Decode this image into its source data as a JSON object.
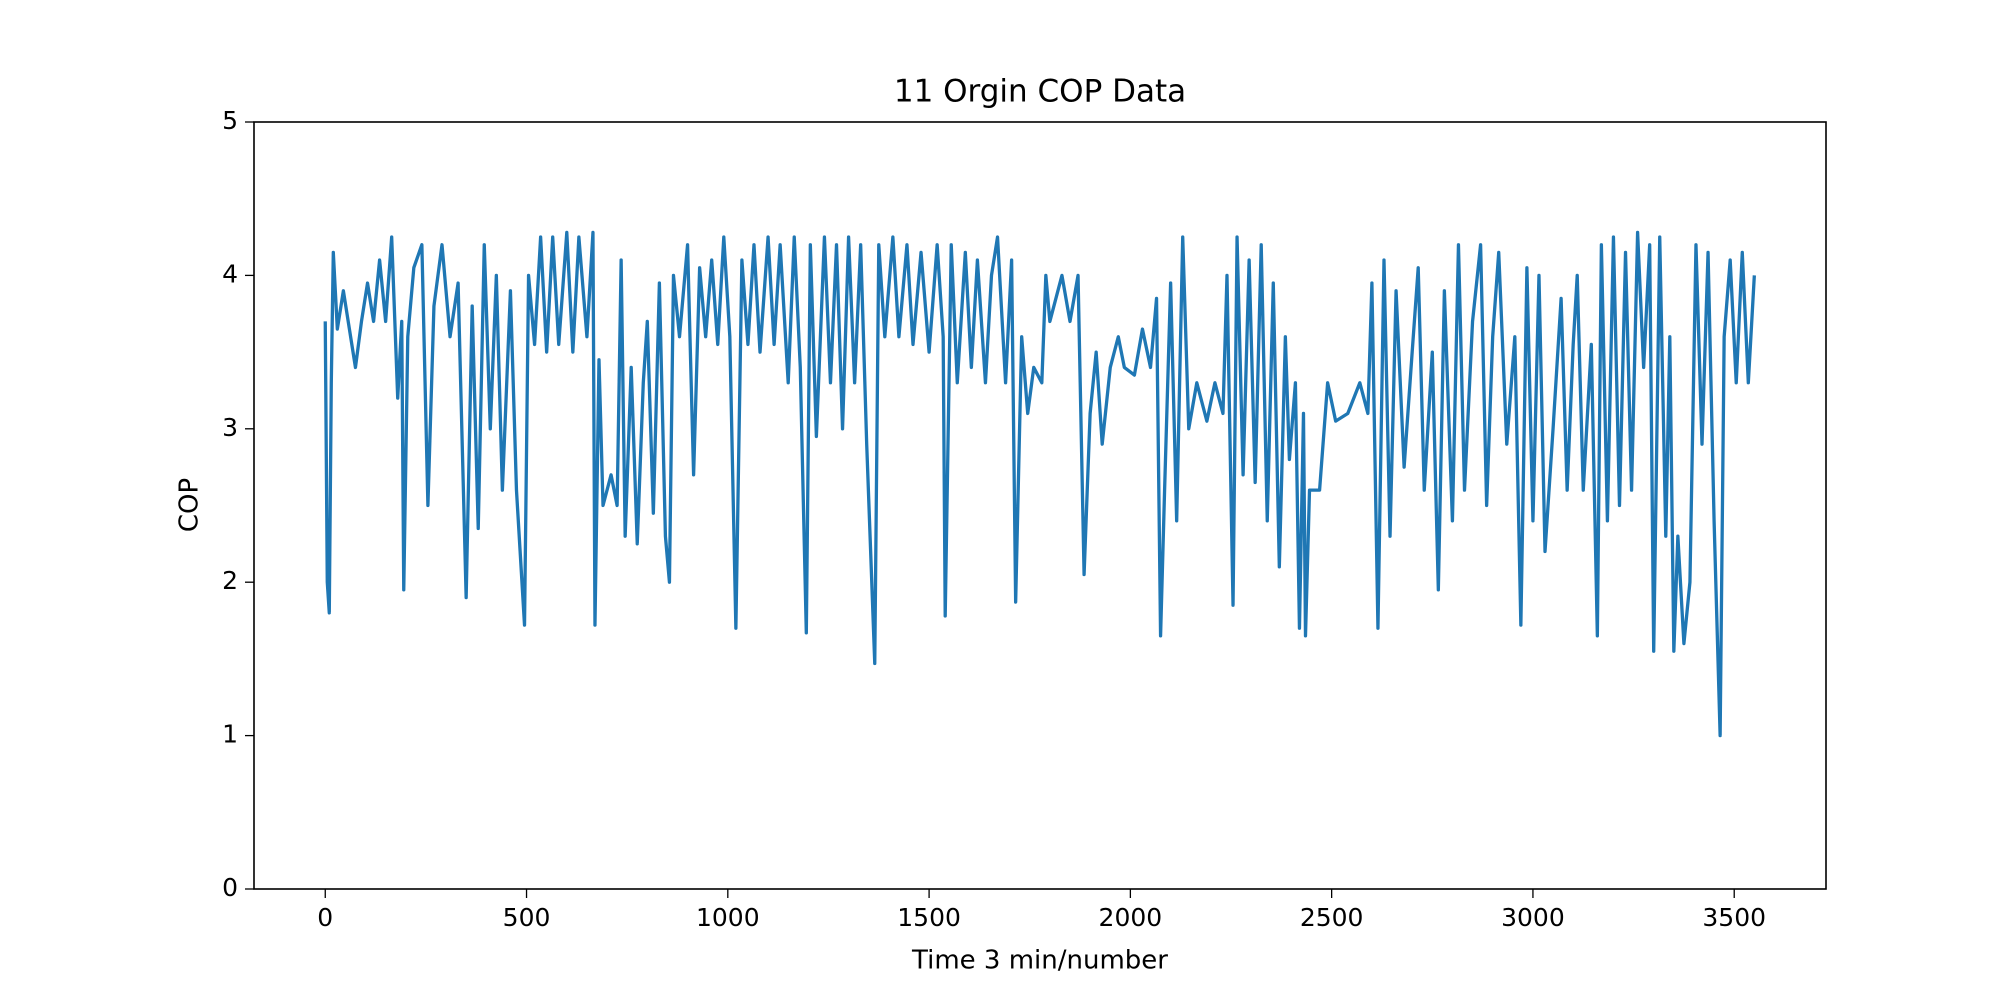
{
  "chart_data": {
    "type": "line",
    "title": "11 Orgin COP Data",
    "x_label": "Time 3 min/number",
    "y_label": "COP",
    "color": "#1f77b4",
    "grid": false,
    "xlim": [
      -177,
      3728
    ],
    "ylim": [
      0,
      5
    ],
    "xticks": [
      0,
      500,
      1000,
      1500,
      2000,
      2500,
      3000,
      3500
    ],
    "yticks": [
      0,
      1,
      2,
      3,
      4,
      5
    ],
    "x": [
      0,
      5,
      10,
      15,
      20,
      30,
      45,
      60,
      75,
      90,
      105,
      120,
      135,
      150,
      165,
      180,
      190,
      195,
      205,
      220,
      240,
      255,
      270,
      290,
      310,
      330,
      350,
      365,
      380,
      395,
      410,
      425,
      440,
      460,
      475,
      495,
      505,
      520,
      535,
      550,
      565,
      580,
      600,
      615,
      630,
      650,
      665,
      670,
      680,
      690,
      710,
      725,
      735,
      745,
      760,
      775,
      790,
      800,
      815,
      830,
      845,
      855,
      865,
      880,
      900,
      915,
      930,
      945,
      960,
      975,
      990,
      1005,
      1020,
      1035,
      1050,
      1065,
      1080,
      1100,
      1115,
      1130,
      1150,
      1165,
      1180,
      1195,
      1205,
      1220,
      1240,
      1255,
      1270,
      1285,
      1300,
      1315,
      1330,
      1345,
      1365,
      1375,
      1390,
      1410,
      1425,
      1445,
      1460,
      1480,
      1500,
      1520,
      1535,
      1540,
      1555,
      1570,
      1590,
      1605,
      1620,
      1640,
      1655,
      1670,
      1690,
      1705,
      1715,
      1730,
      1745,
      1760,
      1780,
      1790,
      1800,
      1830,
      1850,
      1870,
      1885,
      1900,
      1915,
      1930,
      1950,
      1970,
      1985,
      2010,
      2030,
      2050,
      2065,
      2075,
      2085,
      2100,
      2115,
      2130,
      2145,
      2165,
      2190,
      2210,
      2230,
      2240,
      2255,
      2265,
      2280,
      2295,
      2310,
      2325,
      2340,
      2355,
      2370,
      2385,
      2395,
      2410,
      2420,
      2430,
      2435,
      2445,
      2470,
      2490,
      2510,
      2540,
      2570,
      2590,
      2600,
      2615,
      2630,
      2645,
      2660,
      2680,
      2700,
      2715,
      2730,
      2750,
      2765,
      2780,
      2800,
      2815,
      2830,
      2850,
      2870,
      2885,
      2900,
      2915,
      2935,
      2955,
      2970,
      2985,
      3000,
      3015,
      3030,
      3050,
      3070,
      3085,
      3100,
      3110,
      3125,
      3145,
      3160,
      3170,
      3185,
      3200,
      3215,
      3230,
      3245,
      3260,
      3275,
      3290,
      3300,
      3315,
      3330,
      3340,
      3350,
      3360,
      3375,
      3390,
      3405,
      3420,
      3435,
      3450,
      3465,
      3475,
      3490,
      3505,
      3520,
      3535,
      3550
    ],
    "values": [
      3.7,
      2.0,
      1.8,
      3.3,
      4.15,
      3.65,
      3.9,
      3.65,
      3.4,
      3.7,
      3.95,
      3.7,
      4.1,
      3.7,
      4.25,
      3.2,
      3.7,
      1.95,
      3.6,
      4.05,
      4.2,
      2.5,
      3.8,
      4.2,
      3.6,
      3.95,
      1.9,
      3.8,
      2.35,
      4.2,
      3.0,
      4.0,
      2.6,
      3.9,
      2.6,
      1.72,
      4.0,
      3.55,
      4.25,
      3.5,
      4.25,
      3.55,
      4.28,
      3.5,
      4.25,
      3.6,
      4.28,
      1.72,
      3.45,
      2.5,
      2.7,
      2.5,
      4.1,
      2.3,
      3.4,
      2.25,
      3.3,
      3.7,
      2.45,
      3.95,
      2.3,
      2.0,
      4.0,
      3.6,
      4.2,
      2.7,
      4.05,
      3.6,
      4.1,
      3.55,
      4.25,
      3.6,
      1.7,
      4.1,
      3.55,
      4.2,
      3.5,
      4.25,
      3.55,
      4.2,
      3.3,
      4.25,
      3.4,
      1.67,
      4.2,
      2.95,
      4.25,
      3.3,
      4.2,
      3.0,
      4.25,
      3.3,
      4.2,
      2.9,
      1.47,
      4.2,
      3.6,
      4.25,
      3.6,
      4.2,
      3.55,
      4.15,
      3.5,
      4.2,
      3.6,
      1.78,
      4.2,
      3.3,
      4.15,
      3.4,
      4.1,
      3.3,
      4.0,
      4.25,
      3.3,
      4.1,
      1.87,
      3.6,
      3.1,
      3.4,
      3.3,
      4.0,
      3.7,
      4.0,
      3.7,
      4.0,
      2.05,
      3.1,
      3.5,
      2.9,
      3.4,
      3.6,
      3.4,
      3.35,
      3.65,
      3.4,
      3.85,
      1.65,
      2.6,
      3.95,
      2.4,
      4.25,
      3.0,
      3.3,
      3.05,
      3.3,
      3.1,
      4.0,
      1.85,
      4.25,
      2.7,
      4.1,
      2.65,
      4.2,
      2.4,
      3.95,
      2.1,
      3.6,
      2.8,
      3.3,
      1.7,
      3.1,
      1.65,
      2.6,
      2.6,
      3.3,
      3.05,
      3.1,
      3.3,
      3.1,
      3.95,
      1.7,
      4.1,
      2.3,
      3.9,
      2.75,
      3.5,
      4.05,
      2.6,
      3.5,
      1.95,
      3.9,
      2.4,
      4.2,
      2.6,
      3.7,
      4.2,
      2.5,
      3.6,
      4.15,
      2.9,
      3.6,
      1.72,
      4.05,
      2.4,
      4.0,
      2.2,
      3.0,
      3.85,
      2.6,
      3.55,
      4.0,
      2.6,
      3.55,
      1.65,
      4.2,
      2.4,
      4.25,
      2.5,
      4.15,
      2.6,
      4.28,
      3.4,
      4.2,
      1.55,
      4.25,
      2.3,
      3.6,
      1.55,
      2.3,
      1.6,
      2.0,
      4.2,
      2.9,
      4.15,
      2.4,
      1.0,
      3.6,
      4.1,
      3.3,
      4.15,
      3.3,
      4.0
    ]
  }
}
